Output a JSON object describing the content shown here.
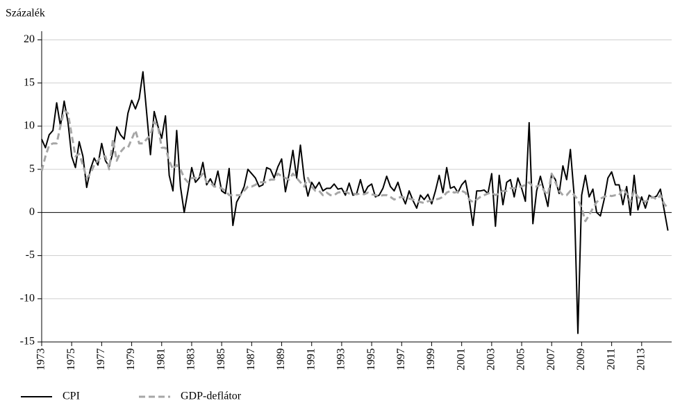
{
  "chart_data": {
    "type": "line",
    "y_label": "Százalék",
    "x": [
      1973,
      1973.25,
      1973.5,
      1973.75,
      1974,
      1974.25,
      1974.5,
      1974.75,
      1975,
      1975.25,
      1975.5,
      1975.75,
      1976,
      1976.25,
      1976.5,
      1976.75,
      1977,
      1977.25,
      1977.5,
      1977.75,
      1978,
      1978.25,
      1978.5,
      1978.75,
      1979,
      1979.25,
      1979.5,
      1979.75,
      1980,
      1980.25,
      1980.5,
      1980.75,
      1981,
      1981.25,
      1981.5,
      1981.75,
      1982,
      1982.25,
      1982.5,
      1982.75,
      1983,
      1983.25,
      1983.5,
      1983.75,
      1984,
      1984.25,
      1984.5,
      1984.75,
      1985,
      1985.25,
      1985.5,
      1985.75,
      1986,
      1986.25,
      1986.5,
      1986.75,
      1987,
      1987.25,
      1987.5,
      1987.75,
      1988,
      1988.25,
      1988.5,
      1988.75,
      1989,
      1989.25,
      1989.5,
      1989.75,
      1990,
      1990.25,
      1990.5,
      1990.75,
      1991,
      1991.25,
      1991.5,
      1991.75,
      1992,
      1992.25,
      1992.5,
      1992.75,
      1993,
      1993.25,
      1993.5,
      1993.75,
      1994,
      1994.25,
      1994.5,
      1994.75,
      1995,
      1995.25,
      1995.5,
      1995.75,
      1996,
      1996.25,
      1996.5,
      1996.75,
      1997,
      1997.25,
      1997.5,
      1997.75,
      1998,
      1998.25,
      1998.5,
      1998.75,
      1999,
      1999.25,
      1999.5,
      1999.75,
      2000,
      2000.25,
      2000.5,
      2000.75,
      2001,
      2001.25,
      2001.5,
      2001.75,
      2002,
      2002.25,
      2002.5,
      2002.75,
      2003,
      2003.25,
      2003.5,
      2003.75,
      2004,
      2004.25,
      2004.5,
      2004.75,
      2005,
      2005.25,
      2005.5,
      2005.75,
      2006,
      2006.25,
      2006.5,
      2006.75,
      2007,
      2007.25,
      2007.5,
      2007.75,
      2008,
      2008.25,
      2008.5,
      2008.75,
      2009,
      2009.25,
      2009.5,
      2009.75,
      2010,
      2010.25,
      2010.5,
      2010.75,
      2011,
      2011.25,
      2011.5,
      2011.75,
      2012,
      2012.25,
      2012.5,
      2012.75,
      2013,
      2013.25,
      2013.5,
      2013.75,
      2014,
      2014.25,
      2014.5,
      2014.75
    ],
    "series": [
      {
        "name": "CPI",
        "color": "#000000",
        "style": "solid",
        "values": [
          8.5,
          7.5,
          9.0,
          9.5,
          12.7,
          10.0,
          12.9,
          10.5,
          6.5,
          5.2,
          8.2,
          6.5,
          2.9,
          5.0,
          6.3,
          5.5,
          8.0,
          6.0,
          5.3,
          7.0,
          9.9,
          9.0,
          8.5,
          11.5,
          13.0,
          12.0,
          13.2,
          16.3,
          11.5,
          6.7,
          11.7,
          10.0,
          8.6,
          11.2,
          4.3,
          2.5,
          9.5,
          3.0,
          0.0,
          2.5,
          5.2,
          3.5,
          4.0,
          5.8,
          3.2,
          3.9,
          3.0,
          4.8,
          2.5,
          2.2,
          5.1,
          -1.5,
          1.2,
          2.0,
          3.0,
          5.0,
          4.5,
          4.0,
          3.0,
          3.2,
          5.2,
          5.0,
          4.0,
          5.3,
          6.2,
          2.4,
          4.5,
          7.2,
          4.0,
          7.8,
          4.0,
          1.9,
          3.5,
          2.8,
          3.5,
          2.5,
          2.8,
          2.8,
          3.3,
          2.7,
          2.8,
          2.0,
          3.4,
          2.0,
          2.2,
          3.8,
          2.2,
          3.0,
          3.3,
          1.8,
          2.0,
          2.8,
          4.2,
          3.0,
          2.5,
          3.5,
          2.0,
          1.0,
          2.5,
          1.4,
          0.5,
          2.0,
          1.5,
          2.1,
          1.0,
          2.5,
          4.3,
          2.3,
          5.2,
          2.8,
          3.0,
          2.3,
          3.2,
          3.7,
          1.5,
          -1.5,
          2.5,
          2.5,
          2.6,
          2.2,
          4.5,
          -1.6,
          4.3,
          0.9,
          3.5,
          3.8,
          1.8,
          4.0,
          2.8,
          1.3,
          10.4,
          -1.3,
          2.5,
          4.2,
          2.5,
          0.7,
          4.5,
          3.8,
          2.2,
          5.4,
          3.8,
          7.3,
          2.0,
          -14.0,
          2.0,
          4.3,
          1.8,
          2.7,
          0.0,
          -0.4,
          1.5,
          4.0,
          4.7,
          3.2,
          3.2,
          0.9,
          3.0,
          -0.3,
          4.3,
          0.3,
          1.8,
          0.5,
          2.0,
          1.7,
          1.9,
          2.7,
          0.3,
          -2.1
        ]
      },
      {
        "name": "GDP-deflátor",
        "color": "#a6a6a6",
        "style": "dashed",
        "values": [
          4.8,
          6.5,
          7.8,
          8.0,
          8.0,
          10.0,
          11.8,
          11.5,
          9.0,
          6.5,
          6.8,
          5.5,
          4.0,
          4.5,
          5.5,
          6.0,
          6.5,
          6.5,
          5.0,
          8.5,
          6.0,
          7.0,
          7.5,
          7.5,
          8.5,
          9.5,
          8.0,
          8.0,
          8.5,
          9.0,
          10.5,
          10.0,
          7.5,
          7.5,
          6.0,
          5.0,
          5.5,
          5.0,
          4.0,
          3.5,
          4.0,
          4.0,
          4.0,
          4.5,
          3.5,
          3.5,
          3.0,
          3.0,
          2.8,
          2.5,
          2.0,
          2.0,
          2.0,
          2.0,
          2.5,
          3.0,
          3.0,
          3.2,
          3.5,
          3.5,
          3.5,
          3.8,
          3.8,
          4.5,
          4.2,
          4.0,
          3.8,
          4.5,
          4.0,
          3.5,
          3.0,
          4.0,
          3.0,
          2.5,
          2.5,
          2.0,
          2.3,
          2.0,
          2.0,
          2.3,
          2.4,
          2.4,
          2.2,
          2.2,
          2.1,
          2.2,
          2.1,
          2.3,
          2.1,
          2.0,
          1.9,
          2.0,
          2.0,
          1.8,
          1.5,
          1.7,
          1.8,
          1.7,
          1.6,
          1.5,
          1.3,
          1.2,
          1.1,
          1.3,
          1.4,
          1.5,
          1.6,
          1.8,
          2.3,
          2.5,
          2.3,
          2.4,
          2.5,
          2.3,
          1.5,
          1.2,
          1.5,
          1.8,
          2.0,
          2.2,
          2.3,
          2.0,
          2.2,
          2.5,
          2.5,
          2.8,
          2.8,
          3.0,
          3.0,
          3.2,
          3.5,
          3.0,
          3.0,
          3.2,
          2.5,
          2.0,
          4.5,
          3.5,
          2.5,
          2.0,
          2.0,
          2.5,
          2.0,
          1.5,
          0.5,
          -1.0,
          -0.3,
          0.5,
          1.2,
          1.6,
          1.8,
          2.0,
          1.9,
          2.0,
          2.0,
          2.8,
          2.2,
          1.2,
          2.5,
          1.8,
          1.5,
          1.2,
          1.6,
          1.8,
          1.5,
          2.0,
          1.0,
          0.5
        ]
      }
    ],
    "xlim": [
      1973,
      2015
    ],
    "xticks": [
      1973,
      1975,
      1977,
      1979,
      1981,
      1983,
      1985,
      1987,
      1989,
      1991,
      1993,
      1995,
      1997,
      1999,
      2001,
      2003,
      2005,
      2007,
      2009,
      2011,
      2013
    ],
    "ylim": [
      -15,
      21
    ],
    "yticks": [
      -15,
      -10,
      -5,
      0,
      5,
      10,
      15,
      20
    ],
    "grid": true,
    "legend": "bottom-left"
  }
}
